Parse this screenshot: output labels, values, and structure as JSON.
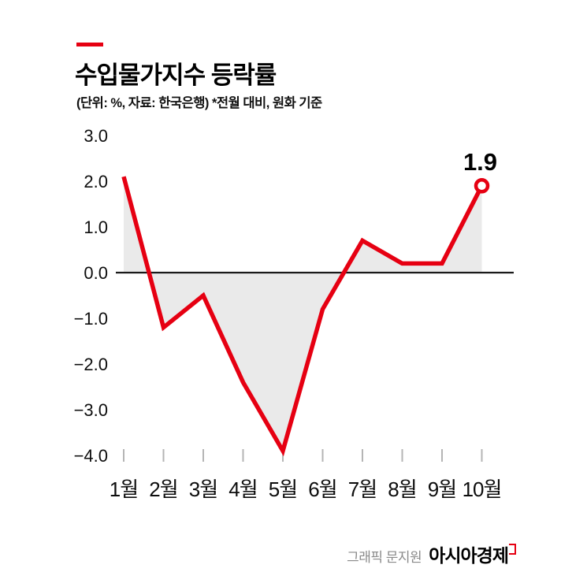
{
  "accent_color": "#e60012",
  "header": {
    "title": "수입물가지수 등락률",
    "subtitle": "(단위: %, 자료: 한국은행)  *전월 대비, 원화 기준"
  },
  "chart_data": {
    "type": "line",
    "title": "수입물가지수 등락률",
    "categories": [
      "1월",
      "2월",
      "3월",
      "4월",
      "5월",
      "6월",
      "7월",
      "8월",
      "9월",
      "10월"
    ],
    "values": [
      2.1,
      -1.2,
      -0.5,
      -2.4,
      -3.9,
      -0.8,
      0.7,
      0.2,
      0.2,
      1.9
    ],
    "last_value_label": "1.9",
    "ylim": [
      -4.0,
      3.0
    ],
    "yticks": [
      3.0,
      2.0,
      1.0,
      0.0,
      -1.0,
      -2.0,
      -3.0,
      -4.0
    ],
    "ytick_labels": [
      "3.0",
      "2.0",
      "1.0",
      "0.0",
      "−1.0",
      "−2.0",
      "−3.0",
      "−4.0"
    ],
    "xlabel": "",
    "ylabel": "",
    "grid": false,
    "zero_line": true,
    "line_color": "#e60012",
    "area_color": "#eaeaea",
    "zero_line_color": "#1a1a1a",
    "tick_color": "#b5b5b5",
    "legend": "none"
  },
  "footer": {
    "credit": "그래픽 문지원",
    "brand": "아시아경제"
  }
}
